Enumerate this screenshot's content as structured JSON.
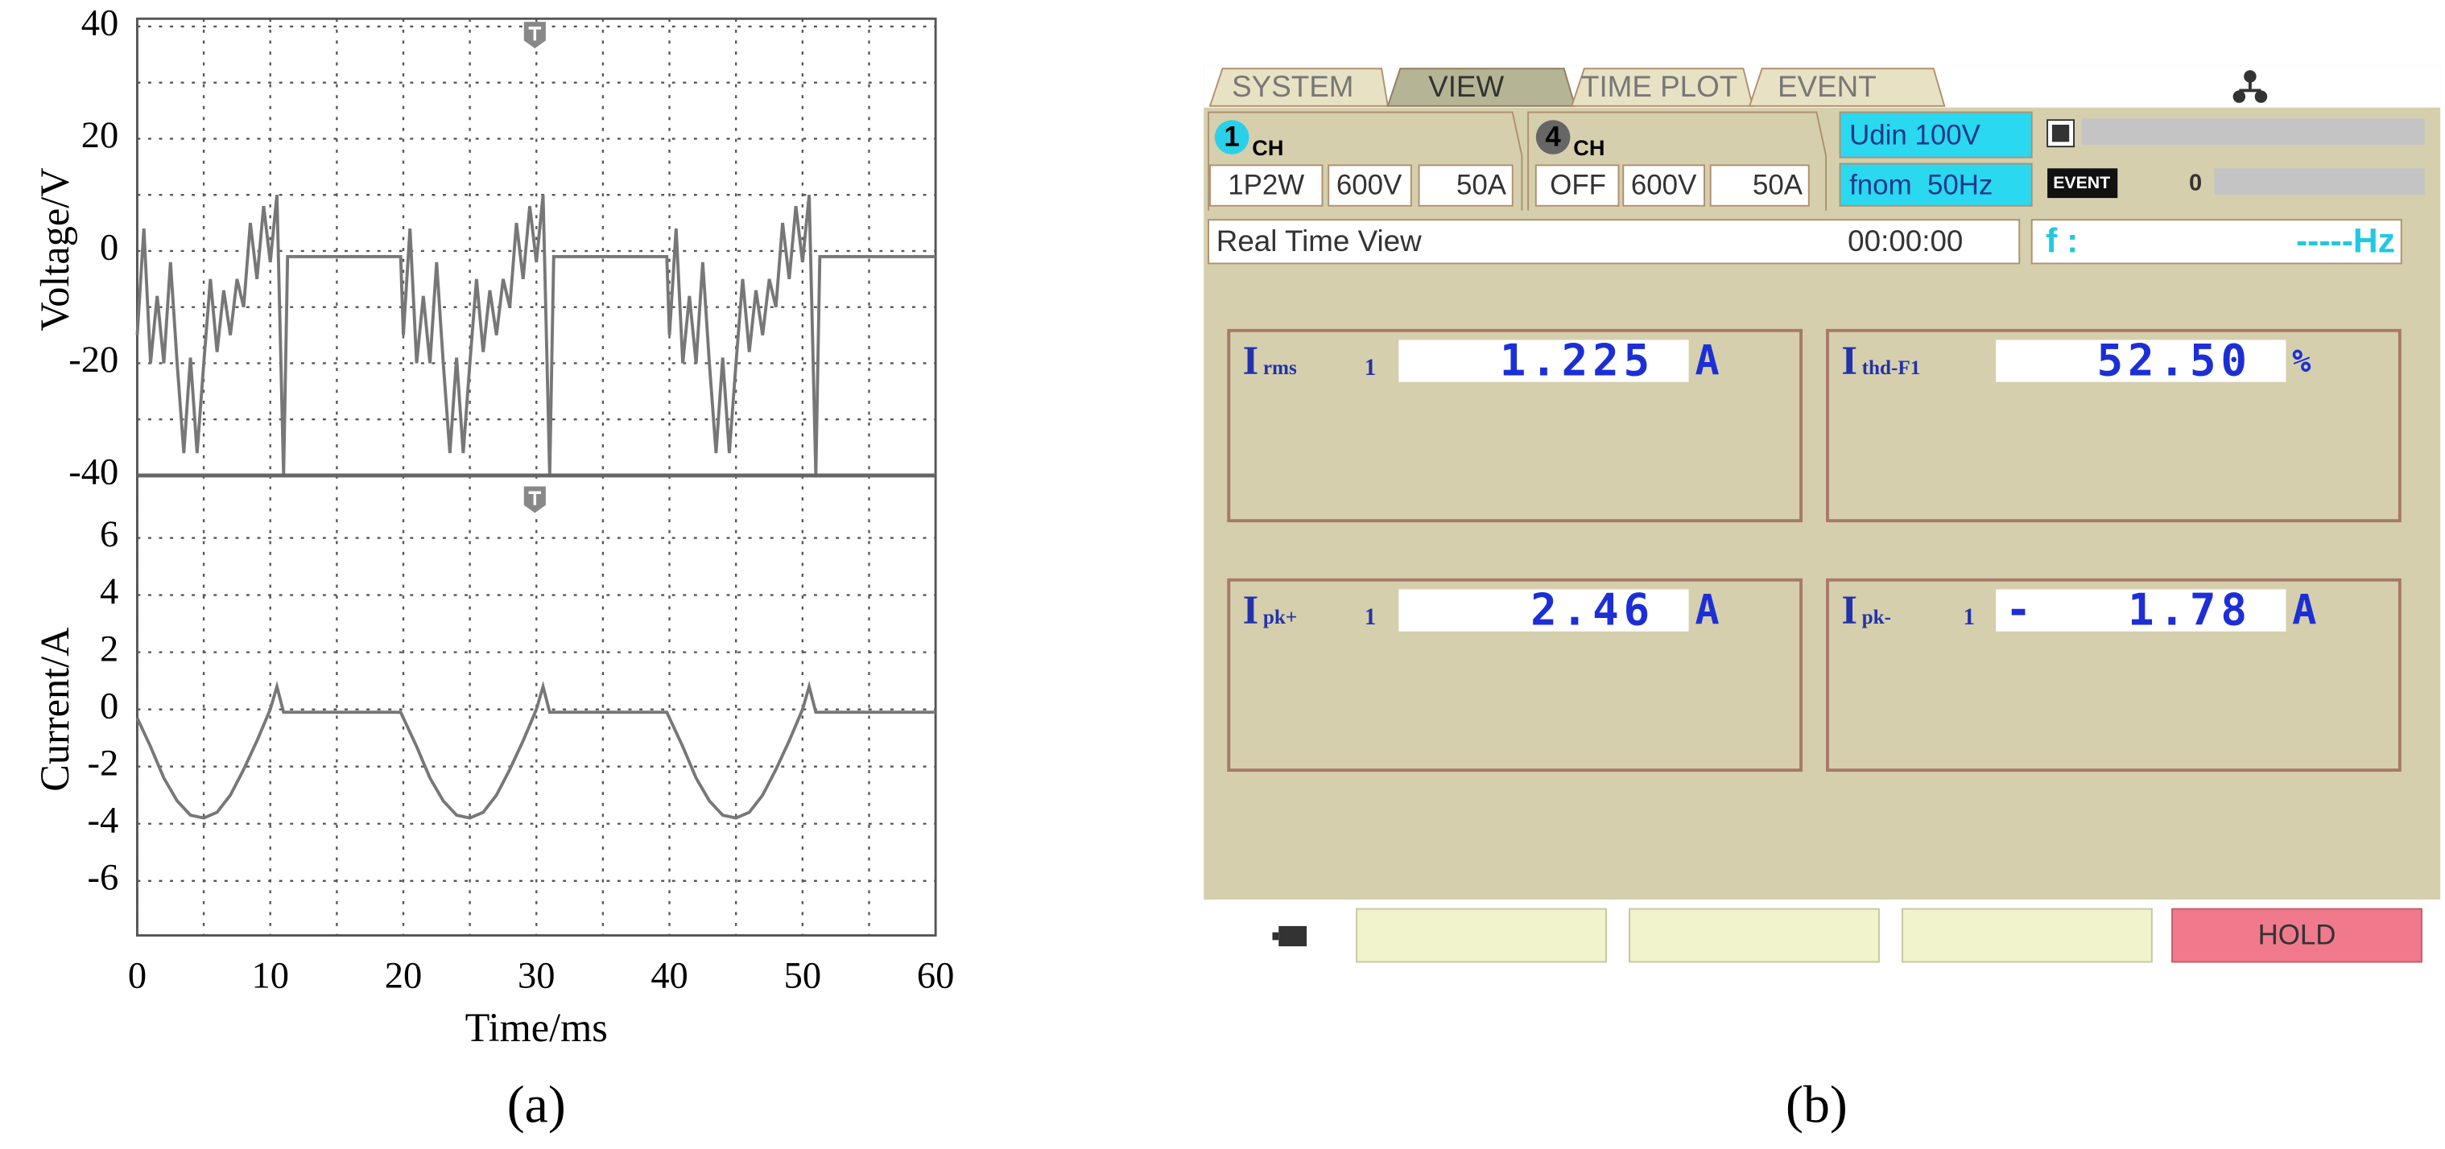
{
  "chart_data": [
    {
      "type": "line",
      "y_label": "Voltage/V",
      "color": "#777777",
      "xlim": [
        0,
        60
      ],
      "ylim": [
        -40,
        40
      ],
      "yticks": [
        -40,
        -20,
        0,
        20,
        40
      ],
      "y_minor_grid": [
        -30,
        -10,
        10,
        30
      ],
      "x_grid": [
        5,
        10,
        15,
        20,
        25,
        30,
        35,
        40,
        45,
        50,
        55
      ],
      "grid": true,
      "x": [
        0,
        0.5,
        1,
        1.5,
        2,
        2.5,
        3,
        3.5,
        4,
        4.5,
        5,
        5.5,
        6,
        6.5,
        7,
        7.5,
        8,
        8.5,
        9,
        9.5,
        10,
        10.5,
        11,
        11.3,
        19.8,
        20,
        20.5,
        21,
        21.5,
        22,
        22.5,
        23,
        23.5,
        24,
        24.5,
        25,
        25.5,
        26,
        26.5,
        27,
        27.5,
        28,
        28.5,
        29,
        29.5,
        30,
        30.5,
        31,
        31.3,
        39.8,
        40,
        40.5,
        41,
        41.5,
        42,
        42.5,
        43,
        43.5,
        44,
        44.5,
        45,
        45.5,
        46,
        46.5,
        47,
        47.5,
        48,
        48.5,
        49,
        49.5,
        50,
        50.5,
        51,
        51.3,
        60
      ],
      "values": [
        -15,
        4,
        -20,
        -8,
        -20,
        -2,
        -20,
        -36,
        -19,
        -36,
        -20,
        -5,
        -18,
        -7,
        -15,
        -5,
        -10,
        5,
        -5,
        8,
        -2,
        10,
        -40,
        -1,
        -1,
        -15,
        4,
        -20,
        -8,
        -20,
        -2,
        -20,
        -36,
        -19,
        -36,
        -20,
        -5,
        -18,
        -7,
        -15,
        -5,
        -10,
        5,
        -5,
        8,
        -2,
        10,
        -40,
        -1,
        -1,
        -15,
        4,
        -20,
        -8,
        -20,
        -2,
        -20,
        -36,
        -19,
        -36,
        -20,
        -5,
        -18,
        -7,
        -15,
        -5,
        -10,
        5,
        -5,
        8,
        -2,
        10,
        -40,
        -1,
        -1
      ]
    },
    {
      "type": "line",
      "y_label": "Current/A",
      "x_label": "Time/ms",
      "color": "#777777",
      "xlim": [
        0,
        60
      ],
      "xticks": [
        0,
        10,
        20,
        30,
        40,
        50,
        60
      ],
      "x_minor_grid": [
        5,
        15,
        25,
        35,
        45,
        55
      ],
      "ylim": [
        -8,
        8.2
      ],
      "yticks": [
        -6,
        -4,
        -2,
        0,
        2,
        4,
        6
      ],
      "grid": true,
      "x": [
        0,
        1,
        2,
        3,
        4,
        5,
        6,
        7,
        8,
        9,
        10,
        10.5,
        11,
        19.8,
        20,
        21,
        22,
        23,
        24,
        25,
        26,
        27,
        28,
        29,
        30,
        30.5,
        31,
        39.8,
        40,
        41,
        42,
        43,
        44,
        45,
        46,
        47,
        48,
        49,
        50,
        50.5,
        51,
        60
      ],
      "values": [
        -0.3,
        -1.3,
        -2.4,
        -3.2,
        -3.7,
        -3.8,
        -3.6,
        -3.0,
        -2.1,
        -1.1,
        0,
        0.8,
        -0.1,
        -0.1,
        -0.3,
        -1.3,
        -2.4,
        -3.2,
        -3.7,
        -3.8,
        -3.6,
        -3.0,
        -2.1,
        -1.1,
        0,
        0.8,
        -0.1,
        -0.1,
        -0.3,
        -1.3,
        -2.4,
        -3.2,
        -3.7,
        -3.8,
        -3.6,
        -3.0,
        -2.1,
        -1.1,
        0,
        0.8,
        -0.1,
        -0.1
      ]
    }
  ],
  "captions": [
    "(a)",
    "(b)"
  ],
  "screen": {
    "tabs": [
      "SYSTEM",
      "VIEW",
      "TIME PLOT",
      "EVENT"
    ],
    "channels": [
      {
        "number": "1",
        "label": "CH",
        "settings": [
          "1P2W",
          "600V",
          "50A"
        ]
      },
      {
        "number": "4",
        "label": "CH",
        "settings": [
          "OFF",
          "600V",
          "50A"
        ]
      }
    ],
    "udin": "Udin 100V",
    "fnom": "fnom  50Hz",
    "event_label": "EVENT",
    "event_count": "0",
    "view_name": "Real Time View",
    "clock": "00:00:00",
    "freq_label": "f :",
    "freq_value": "-----Hz",
    "measurements": [
      {
        "symbol": "I",
        "subscript": "rms",
        "channel": "1",
        "value": "1.225",
        "unit": "A"
      },
      {
        "symbol": "I",
        "subscript": "thd-F1",
        "value": "52.50",
        "unit": "%"
      },
      {
        "symbol": "I",
        "subscript": "pk+",
        "channel": "1",
        "value": "2.46",
        "unit": "A"
      },
      {
        "symbol": "I",
        "subscript": "pk-",
        "channel": "1",
        "sign": "-",
        "value": "1.78",
        "unit": "A"
      }
    ],
    "hold": "HOLD"
  }
}
